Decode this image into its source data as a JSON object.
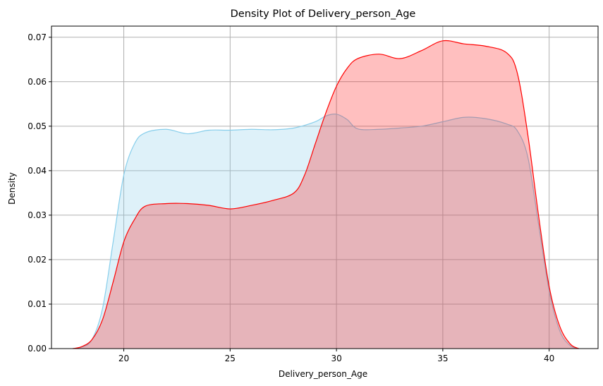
{
  "chart_data": {
    "type": "area",
    "title": "Density Plot of Delivery_person_Age",
    "xlabel": "Delivery_person_Age",
    "ylabel": "Density",
    "xlim": [
      16.6,
      42.3
    ],
    "ylim": [
      0,
      0.0725
    ],
    "xticks": [
      20,
      25,
      30,
      35,
      40
    ],
    "yticks": [
      0.0,
      0.01,
      0.02,
      0.03,
      0.04,
      0.05,
      0.06,
      0.07
    ],
    "grid": true,
    "legend": "none",
    "series": [
      {
        "line_color": "#87ceeb",
        "fill_color": "#87ceeb",
        "fill_opacity": 0.28,
        "x": [
          17.6,
          18.0,
          18.5,
          19.0,
          19.5,
          20.0,
          20.5,
          21.0,
          22.0,
          23.0,
          24.0,
          25.0,
          26.0,
          27.0,
          28.0,
          29.0,
          29.5,
          30.0,
          30.5,
          31.0,
          32.0,
          33.0,
          34.0,
          35.0,
          36.0,
          37.0,
          38.0,
          38.5,
          39.0,
          39.5,
          40.0,
          40.5,
          41.0,
          41.4
        ],
        "y": [
          0.0,
          0.0003,
          0.002,
          0.009,
          0.024,
          0.039,
          0.046,
          0.0485,
          0.0493,
          0.0483,
          0.0491,
          0.0491,
          0.0493,
          0.0492,
          0.0496,
          0.051,
          0.0523,
          0.0527,
          0.0515,
          0.0494,
          0.0493,
          0.0496,
          0.05,
          0.051,
          0.052,
          0.0517,
          0.0505,
          0.049,
          0.043,
          0.028,
          0.013,
          0.004,
          0.0006,
          0.0
        ]
      },
      {
        "line_color": "#ff0000",
        "fill_color": "#ff0000",
        "fill_opacity": 0.25,
        "x": [
          17.6,
          18.0,
          18.5,
          19.0,
          19.5,
          20.0,
          20.5,
          21.0,
          22.0,
          23.0,
          24.0,
          25.0,
          26.0,
          27.0,
          28.0,
          28.5,
          29.0,
          29.5,
          30.0,
          30.5,
          31.0,
          32.0,
          33.0,
          34.0,
          35.0,
          36.0,
          37.0,
          38.0,
          38.5,
          39.0,
          39.5,
          40.0,
          40.5,
          41.0,
          41.4
        ],
        "y": [
          0.0,
          0.0004,
          0.002,
          0.0065,
          0.015,
          0.024,
          0.029,
          0.032,
          0.0326,
          0.0326,
          0.0322,
          0.0314,
          0.0322,
          0.0333,
          0.035,
          0.039,
          0.046,
          0.053,
          0.059,
          0.063,
          0.0652,
          0.0662,
          0.0652,
          0.067,
          0.0692,
          0.0685,
          0.068,
          0.0665,
          0.062,
          0.048,
          0.03,
          0.014,
          0.005,
          0.001,
          0.0
        ]
      }
    ]
  }
}
